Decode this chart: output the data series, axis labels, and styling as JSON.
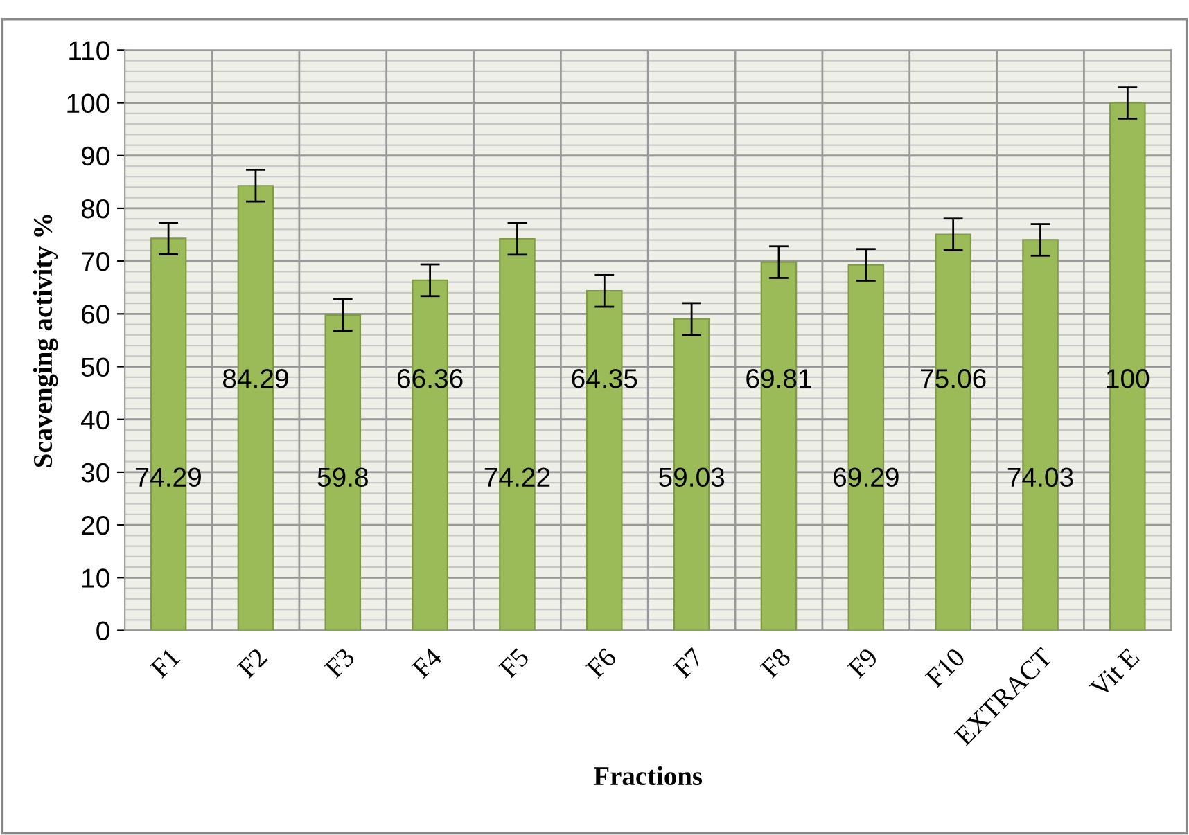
{
  "chart_data": {
    "type": "bar",
    "xlabel": "Fractions",
    "ylabel": "Scavenging activity %",
    "categories": [
      "F1",
      "F2",
      "F3",
      "F4",
      "F5",
      "F6",
      "F7",
      "F8",
      "F9",
      "F10",
      "EXTRACT",
      "Vit E"
    ],
    "values": [
      74.29,
      84.29,
      59.8,
      66.36,
      74.22,
      64.35,
      59.03,
      69.81,
      69.29,
      75.06,
      74.03,
      100
    ],
    "errors": [
      3,
      3,
      3,
      3,
      3,
      3,
      3,
      3,
      3,
      3,
      3,
      3
    ],
    "color": "#9bbb59",
    "data_labels": true,
    "ylim": [
      0,
      110
    ],
    "yticks": [
      0,
      10,
      20,
      30,
      40,
      50,
      60,
      70,
      80,
      90,
      100,
      110
    ],
    "grid": true,
    "legend": false
  }
}
